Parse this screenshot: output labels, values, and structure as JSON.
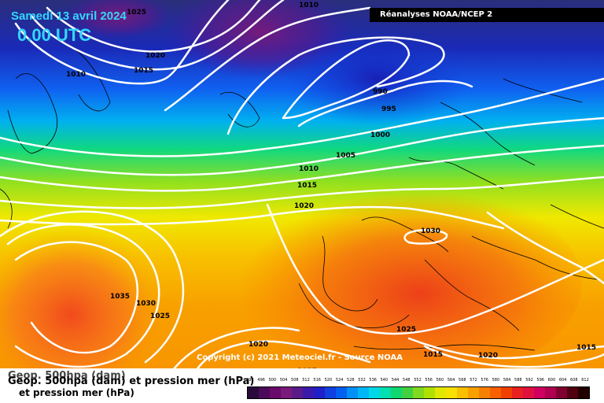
{
  "header": {
    "date": "Samedi 13 avril 2024",
    "time": "0.00 UTC"
  },
  "source_label": "Réanalyses NOAA/NCEP 2",
  "copyright": "Copyright (c) 2021 Meteociel.fr - Source NOAA",
  "legend": {
    "title_back": "Geop. 500hpa (dam)",
    "title_front": "Geop. 500hpa (dam) et pression mer (hPa)",
    "title_line2": "et pression mer (hPa)",
    "scale_labels": [
      "492",
      "496",
      "500",
      "504",
      "508",
      "512",
      "516",
      "520",
      "524",
      "528",
      "532",
      "536",
      "540",
      "544",
      "548",
      "552",
      "556",
      "560",
      "564",
      "568",
      "572",
      "576",
      "580",
      "584",
      "588",
      "592",
      "596",
      "600",
      "604",
      "608",
      "612"
    ],
    "scale_colors": [
      "#2a0a3a",
      "#4a0a5a",
      "#6a0a6a",
      "#7a1a7a",
      "#5a1a8a",
      "#3a1aaa",
      "#2020c8",
      "#1040e0",
      "#0060f0",
      "#0090f8",
      "#00b8f8",
      "#00d8e8",
      "#00e0b0",
      "#10d870",
      "#40d040",
      "#80d820",
      "#b0e000",
      "#e0e800",
      "#f8e000",
      "#f8c000",
      "#f8a000",
      "#f88000",
      "#f86000",
      "#f04000",
      "#e82020",
      "#e01040",
      "#d00060",
      "#b00050",
      "#800030",
      "#500010",
      "#200000"
    ]
  },
  "isobar_labels": [
    "1025",
    "1010",
    "1020",
    "1015",
    "1010",
    "990",
    "995",
    "1000",
    "1005",
    "1010",
    "1015",
    "1020",
    "1030",
    "1035",
    "1030",
    "1025",
    "1020",
    "1025",
    "1015",
    "1020",
    "1015",
    "1015"
  ],
  "theme": {
    "title_color": "#33d6ff",
    "isobar_color": "#ffffff",
    "coast_color": "#000000"
  }
}
